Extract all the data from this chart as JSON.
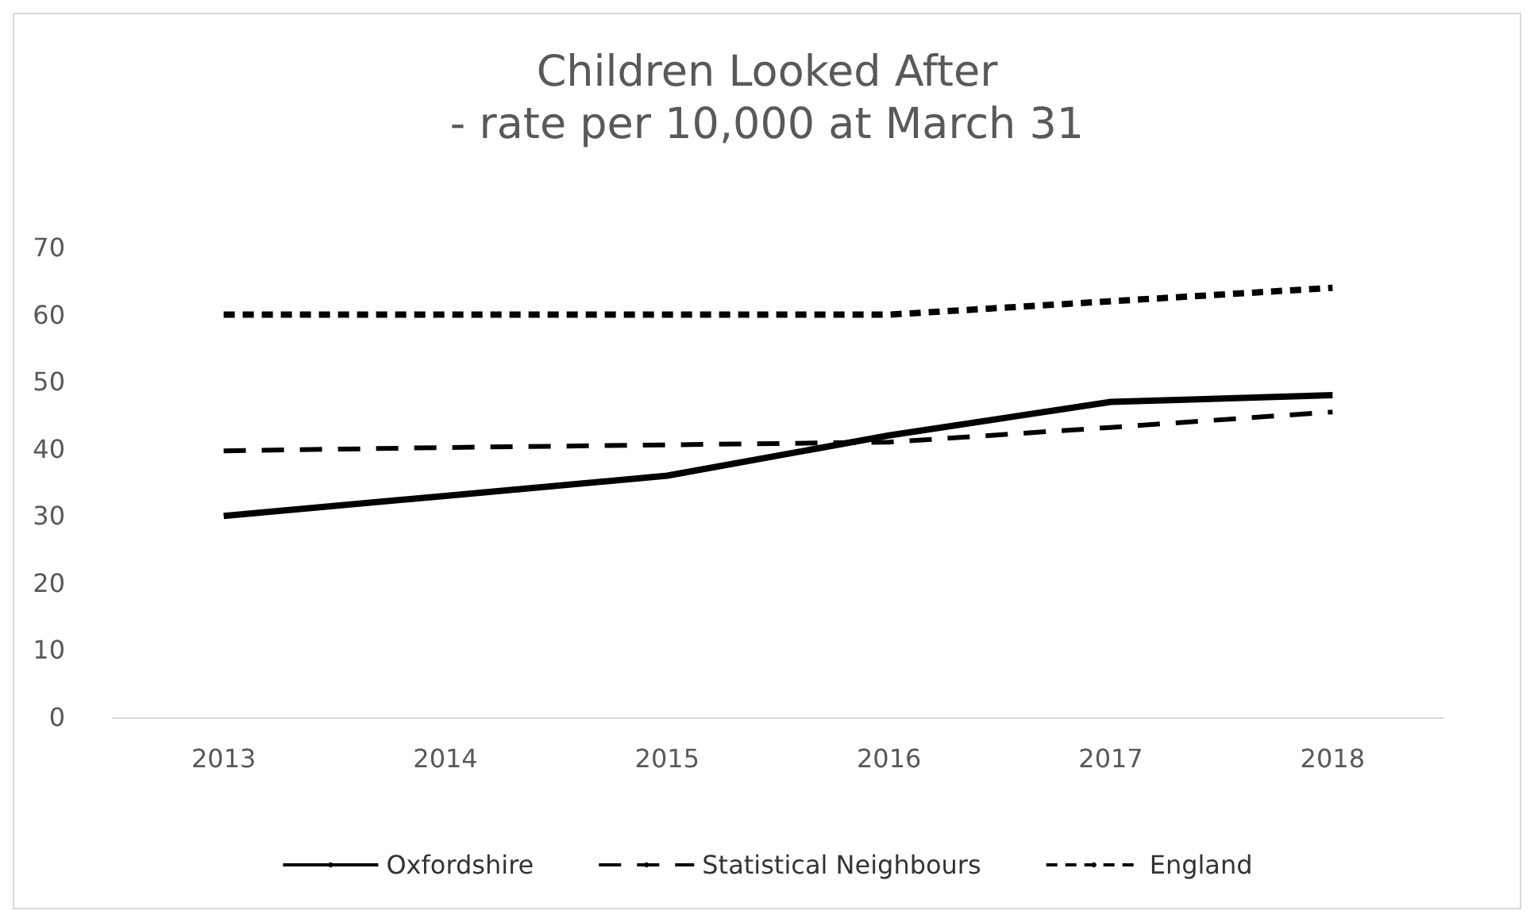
{
  "chart_data": {
    "type": "line",
    "title": "Children Looked After",
    "subtitle": "- rate per 10,000 at March 31",
    "categories": [
      "2013",
      "2014",
      "2015",
      "2016",
      "2017",
      "2018"
    ],
    "series": [
      {
        "name": "Oxfordshire",
        "color": "#000000",
        "line_style": "solid",
        "values": [
          30,
          33,
          36,
          42,
          47,
          48
        ]
      },
      {
        "name": "Statistical Neighbours",
        "color": "#000000",
        "line_style": "dashed",
        "values": [
          39.7,
          40.2,
          40.6,
          41,
          43.2,
          45.5
        ]
      },
      {
        "name": "England",
        "color": "#000000",
        "line_style": "dotted",
        "values": [
          60,
          60,
          60,
          60,
          62,
          64
        ]
      }
    ],
    "ylim": [
      0,
      70
    ],
    "yticks": [
      0,
      10,
      20,
      30,
      40,
      50,
      60,
      70
    ],
    "grid": false,
    "legend": "bottom",
    "marker": "none"
  }
}
